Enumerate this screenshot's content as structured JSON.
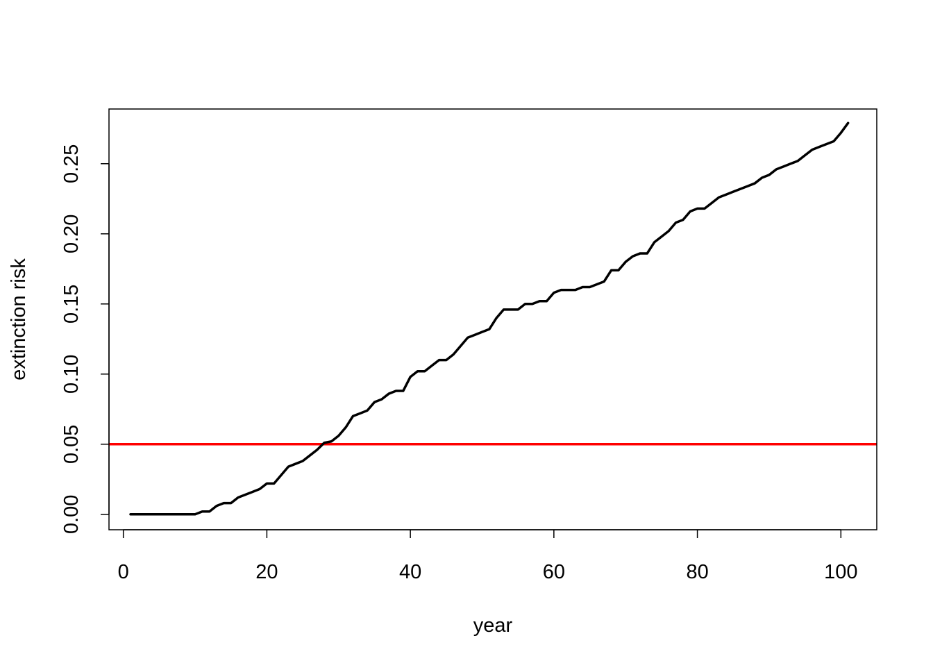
{
  "chart_data": {
    "type": "line",
    "title": "",
    "xlabel": "year",
    "ylabel": "extinction risk",
    "xlim": [
      -2.0,
      105.0
    ],
    "ylim": [
      -0.011,
      0.289
    ],
    "x_ticks": [
      0,
      20,
      40,
      60,
      80,
      100
    ],
    "x_tick_labels": [
      "0",
      "20",
      "40",
      "60",
      "80",
      "100"
    ],
    "y_ticks": [
      0.0,
      0.05,
      0.1,
      0.15,
      0.2,
      0.25
    ],
    "y_tick_labels": [
      "0.00",
      "0.05",
      "0.10",
      "0.15",
      "0.20",
      "0.25"
    ],
    "grid": false,
    "legend": "none",
    "series": [
      {
        "color": "#000000",
        "x": [
          1,
          2,
          3,
          4,
          5,
          6,
          7,
          8,
          9,
          10,
          11,
          12,
          13,
          14,
          15,
          16,
          17,
          18,
          19,
          20,
          21,
          22,
          23,
          24,
          25,
          26,
          27,
          28,
          29,
          30,
          31,
          32,
          33,
          34,
          35,
          36,
          37,
          38,
          39,
          40,
          41,
          42,
          43,
          44,
          45,
          46,
          47,
          48,
          49,
          50,
          51,
          52,
          53,
          54,
          55,
          56,
          57,
          58,
          59,
          60,
          61,
          62,
          63,
          64,
          65,
          66,
          67,
          68,
          69,
          70,
          71,
          72,
          73,
          74,
          75,
          76,
          77,
          78,
          79,
          80,
          81,
          82,
          83,
          84,
          85,
          86,
          87,
          88,
          89,
          90,
          91,
          92,
          93,
          94,
          95,
          96,
          97,
          98,
          99,
          100,
          101
        ],
        "values": [
          0,
          0,
          0,
          0,
          0,
          0,
          0,
          0,
          0,
          0,
          0.002,
          0.002,
          0.006,
          0.008,
          0.008,
          0.012,
          0.014,
          0.016,
          0.018,
          0.022,
          0.022,
          0.028,
          0.034,
          0.036,
          0.038,
          0.042,
          0.046,
          0.051,
          0.052,
          0.056,
          0.062,
          0.07,
          0.072,
          0.074,
          0.08,
          0.082,
          0.086,
          0.088,
          0.088,
          0.098,
          0.102,
          0.102,
          0.106,
          0.11,
          0.11,
          0.114,
          0.12,
          0.126,
          0.128,
          0.13,
          0.132,
          0.14,
          0.146,
          0.146,
          0.146,
          0.15,
          0.15,
          0.152,
          0.152,
          0.158,
          0.16,
          0.16,
          0.16,
          0.162,
          0.162,
          0.164,
          0.166,
          0.174,
          0.174,
          0.18,
          0.184,
          0.186,
          0.186,
          0.194,
          0.198,
          0.202,
          0.208,
          0.21,
          0.216,
          0.218,
          0.218,
          0.222,
          0.226,
          0.228,
          0.23,
          0.232,
          0.234,
          0.236,
          0.24,
          0.242,
          0.246,
          0.248,
          0.25,
          0.252,
          0.256,
          0.26,
          0.262,
          0.264,
          0.266,
          0.272,
          0.279
        ]
      }
    ],
    "hlines": [
      {
        "y": 0.05,
        "color": "#ff0000"
      }
    ]
  }
}
